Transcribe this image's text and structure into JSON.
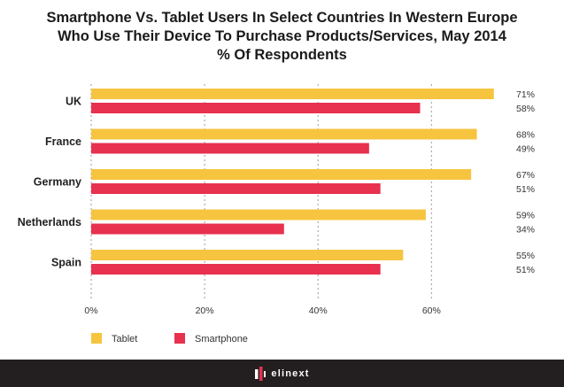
{
  "title_lines": [
    "Smartphone Vs. Tablet Users In Select Countries In Western Europe",
    "Who Use Their Device To Purchase Products/Services, May 2014",
    "% Of Respondents"
  ],
  "brand": {
    "name": "elinext",
    "logo_icon": "elinext-logo-icon"
  },
  "colors": {
    "tablet": "#f6c43f",
    "smartphone": "#e8304f",
    "footer": "#231f20"
  },
  "chart_data": {
    "type": "bar",
    "orientation": "horizontal",
    "title": "Smartphone Vs. Tablet Users In Select Countries In Western Europe Who Use Their Device To Purchase Products/Services, May 2014 % Of Respondents",
    "categories": [
      "UK",
      "France",
      "Germany",
      "Netherlands",
      "Spain"
    ],
    "series": [
      {
        "name": "Tablet",
        "values": [
          71,
          68,
          67,
          59,
          55
        ],
        "labels": [
          "71%",
          "68%",
          "67%",
          "59%",
          "55%"
        ]
      },
      {
        "name": "Smartphone",
        "values": [
          58,
          49,
          51,
          34,
          51
        ],
        "labels": [
          "58%",
          "49%",
          "51%",
          "34%",
          "51%"
        ]
      }
    ],
    "x_ticks": [
      0,
      20,
      40,
      60
    ],
    "x_tick_labels": [
      "0%",
      "20%",
      "40%",
      "60%"
    ],
    "xlim": [
      0,
      74
    ],
    "grid": true,
    "legend": [
      "Tablet",
      "Smartphone"
    ],
    "legend_position": "bottom-left",
    "xlabel": "",
    "ylabel": ""
  }
}
